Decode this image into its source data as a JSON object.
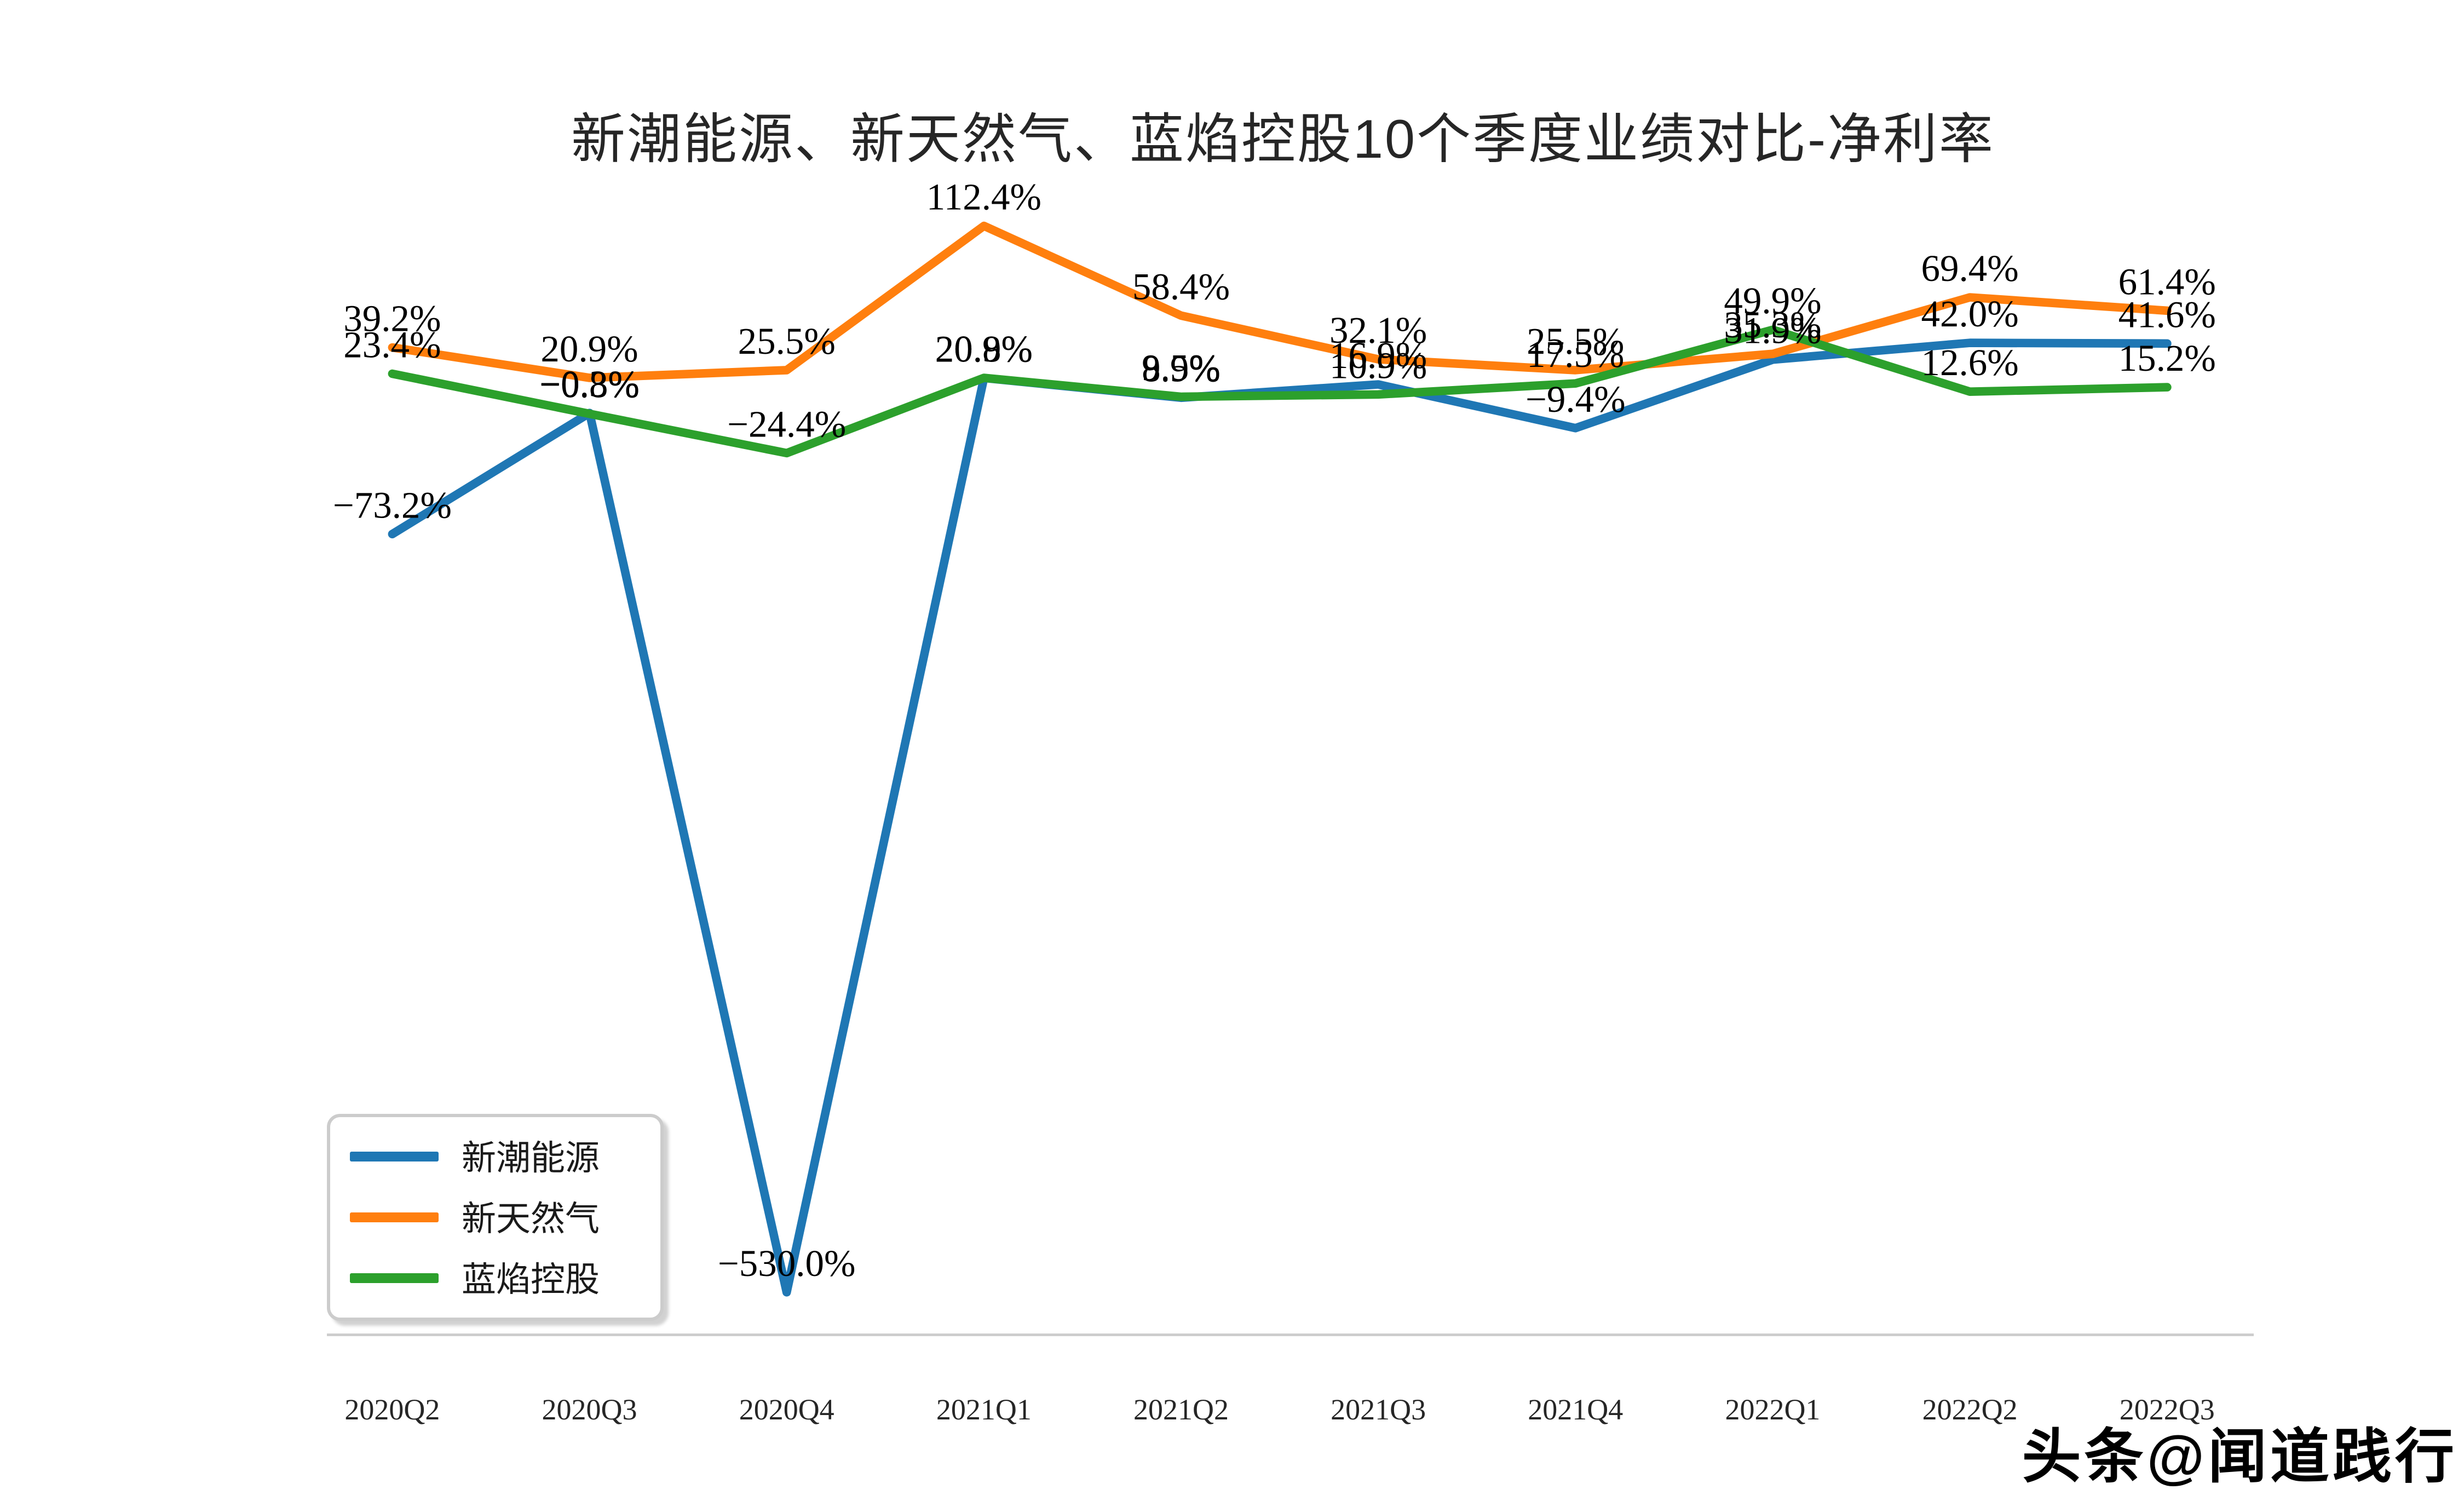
{
  "title": "新潮能源、新天然气、蓝焰控股10个季度业绩对比-净利率",
  "watermark": "头条@闻道践行",
  "colors": {
    "blue": "#1f77b4",
    "orange": "#ff7f0e",
    "green": "#2ca02c",
    "axis_line": "#cccccc",
    "label_text": "#000000",
    "tick_text": "#262626"
  },
  "chart_data": {
    "type": "line",
    "title": "新潮能源、新天然气、蓝焰控股10个季度业绩对比-净利率",
    "xlabel": "",
    "ylabel": "",
    "categories": [
      "2020Q2",
      "2020Q3",
      "2020Q4",
      "2021Q1",
      "2021Q2",
      "2021Q3",
      "2021Q4",
      "2022Q1",
      "2022Q2",
      "2022Q3"
    ],
    "series": [
      {
        "name": "新潮能源",
        "color": "#1f77b4",
        "values": [
          -73.2,
          -0.3,
          -530.0,
          20.8,
          8.9,
          16.9,
          -9.4,
          31.9,
          42.0,
          41.6
        ]
      },
      {
        "name": "新天然气",
        "color": "#ff7f0e",
        "values": [
          39.2,
          20.9,
          25.5,
          112.4,
          58.4,
          32.1,
          25.5,
          35.3,
          69.4,
          61.4
        ]
      },
      {
        "name": "蓝焰控股",
        "color": "#2ca02c",
        "values": [
          23.4,
          -0.8,
          -24.4,
          20.9,
          9.5,
          10.9,
          17.5,
          49.9,
          12.6,
          15.2
        ]
      }
    ],
    "value_format": "percent_1dp",
    "point_labels": true,
    "ylim": [
      -560,
      140
    ],
    "grid": false,
    "legend_position": "lower left",
    "spines": "bottom-only"
  }
}
